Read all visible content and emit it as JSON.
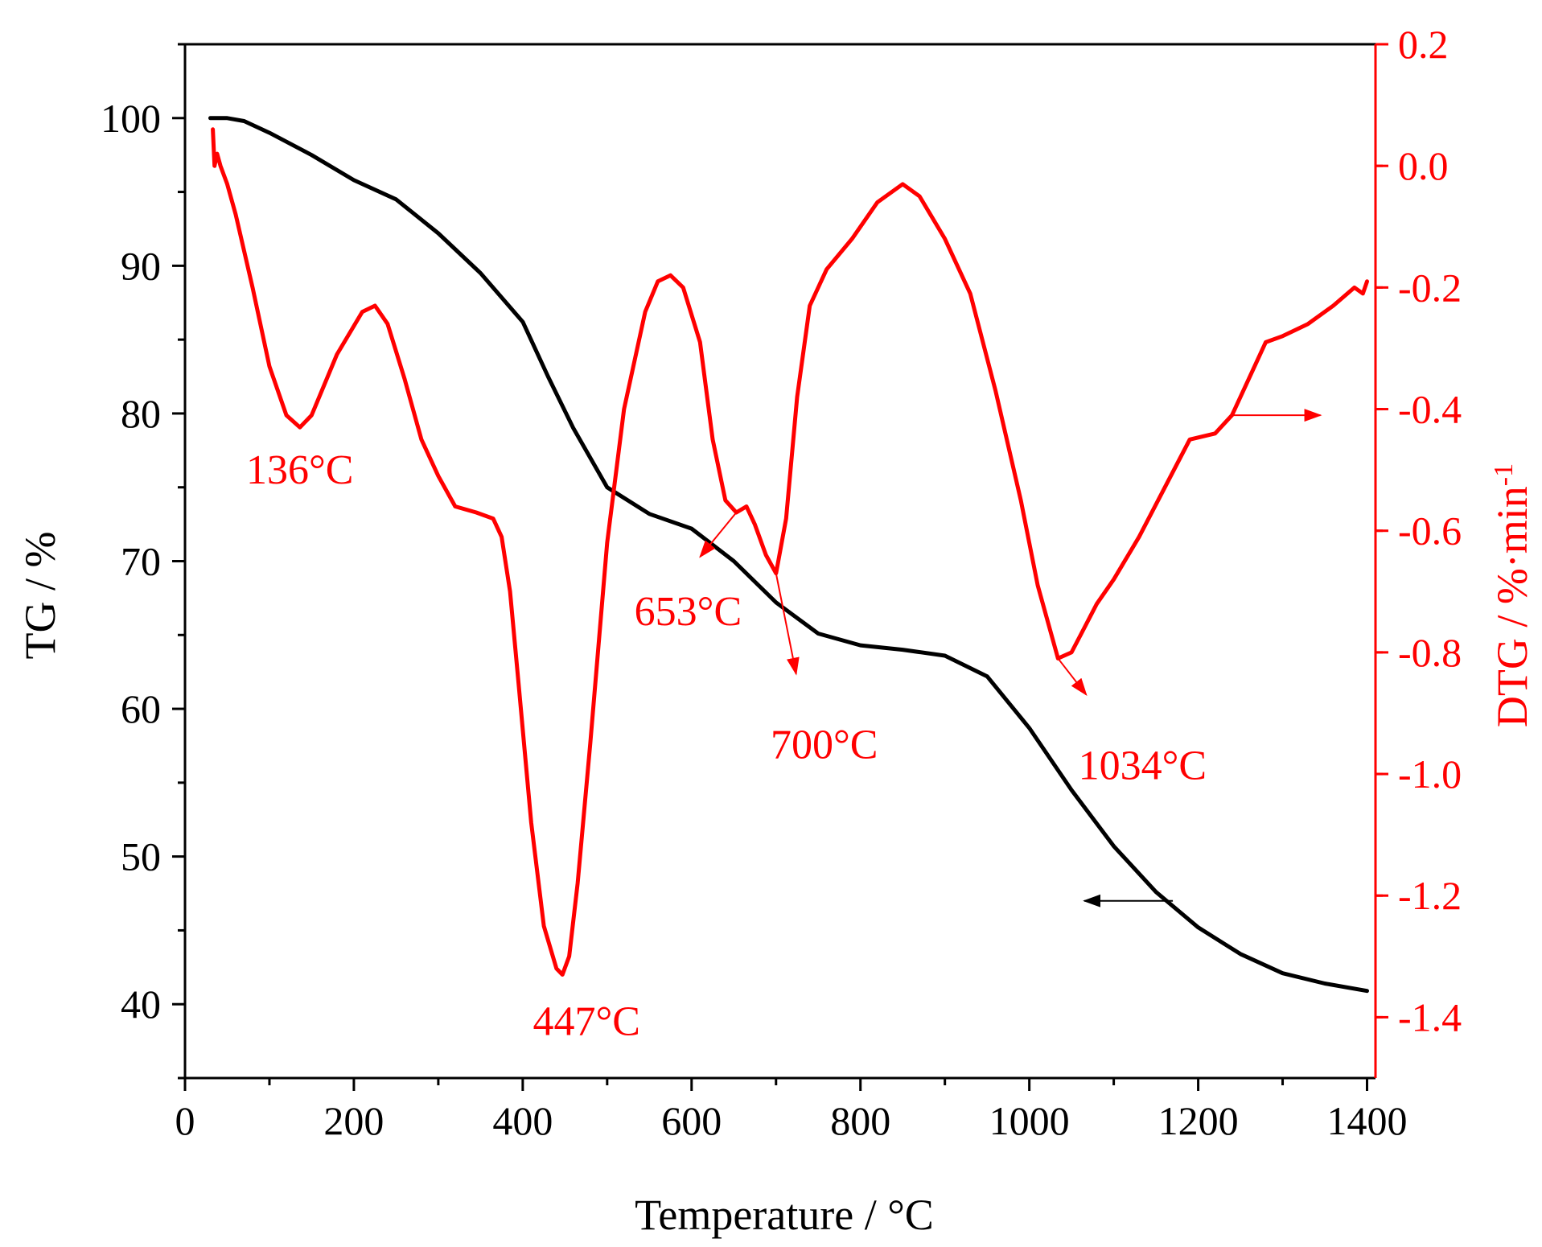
{
  "chart_data": {
    "type": "line",
    "title": "",
    "xlabel": "Temperature / °C",
    "ylabel_left": "TG / %",
    "ylabel_right": "DTG / %·min",
    "ylabel_right_superscript": "-1",
    "xlim": [
      0,
      1410
    ],
    "ylim_left": [
      35,
      105
    ],
    "ylim_right": [
      -1.5,
      0.2
    ],
    "x_ticks": [
      0,
      200,
      400,
      600,
      800,
      1000,
      1200,
      1400
    ],
    "y_ticks_left": [
      40,
      50,
      60,
      70,
      80,
      90,
      100
    ],
    "y_ticks_right": [
      0.2,
      0.0,
      -0.2,
      -0.4,
      -0.6,
      -0.8,
      -1.0,
      -1.2,
      -1.4
    ],
    "y_tick_labels_right": [
      "0.2",
      "0.0",
      "-0.2",
      "-0.4",
      "-0.6",
      "-0.8",
      "-1.0",
      "-1.2",
      "-1.4"
    ],
    "colors": {
      "tg": "#000000",
      "dtg": "#ff0000",
      "axis_left": "#000000",
      "axis_right": "#ff0000"
    },
    "series": [
      {
        "name": "TG",
        "axis": "left",
        "color": "#000000",
        "x": [
          30,
          50,
          70,
          100,
          150,
          200,
          250,
          300,
          350,
          400,
          430,
          460,
          500,
          550,
          600,
          650,
          700,
          750,
          800,
          850,
          900,
          950,
          1000,
          1050,
          1100,
          1150,
          1200,
          1250,
          1300,
          1350,
          1400
        ],
        "y": [
          100,
          100,
          99.8,
          99,
          97.5,
          95.8,
          94.5,
          92.2,
          89.5,
          86.2,
          82.5,
          79,
          75,
          73.2,
          72.2,
          70,
          67.2,
          65.1,
          64.3,
          64,
          63.6,
          62.2,
          58.7,
          54.5,
          50.7,
          47.6,
          45.2,
          43.4,
          42.1,
          41.4,
          40.9
        ]
      },
      {
        "name": "DTG",
        "axis": "right",
        "color": "#ff0000",
        "x": [
          33,
          35,
          38,
          42,
          50,
          60,
          80,
          100,
          120,
          136,
          150,
          180,
          210,
          225,
          240,
          260,
          280,
          300,
          320,
          345,
          365,
          375,
          385,
          395,
          410,
          425,
          440,
          447,
          455,
          465,
          480,
          500,
          520,
          545,
          560,
          575,
          590,
          610,
          625,
          640,
          653,
          665,
          675,
          688,
          700,
          712,
          725,
          740,
          760,
          790,
          820,
          850,
          870,
          900,
          930,
          960,
          990,
          1010,
          1034,
          1050,
          1065,
          1080,
          1100,
          1130,
          1160,
          1190,
          1220,
          1240,
          1260,
          1280,
          1300,
          1330,
          1360,
          1385,
          1395,
          1400
        ],
        "y": [
          0.06,
          0.0,
          0.02,
          0.0,
          -0.03,
          -0.08,
          -0.2,
          -0.33,
          -0.41,
          -0.43,
          -0.41,
          -0.31,
          -0.24,
          -0.23,
          -0.26,
          -0.35,
          -0.45,
          -0.51,
          -0.56,
          -0.57,
          -0.58,
          -0.61,
          -0.7,
          -0.85,
          -1.08,
          -1.25,
          -1.32,
          -1.33,
          -1.3,
          -1.18,
          -0.95,
          -0.62,
          -0.4,
          -0.24,
          -0.19,
          -0.18,
          -0.2,
          -0.29,
          -0.45,
          -0.55,
          -0.57,
          -0.56,
          -0.59,
          -0.64,
          -0.67,
          -0.58,
          -0.38,
          -0.23,
          -0.17,
          -0.12,
          -0.06,
          -0.03,
          -0.05,
          -0.12,
          -0.21,
          -0.37,
          -0.55,
          -0.69,
          -0.81,
          -0.8,
          -0.76,
          -0.72,
          -0.68,
          -0.61,
          -0.53,
          -0.45,
          -0.44,
          -0.41,
          -0.35,
          -0.29,
          -0.28,
          -0.26,
          -0.23,
          -0.2,
          -0.21,
          -0.19
        ]
      }
    ],
    "annotations": [
      {
        "id": "p136",
        "text": "136°C",
        "x": 136,
        "y": -0.43,
        "axis": "right"
      },
      {
        "id": "p447",
        "text": "447°C",
        "x": 447,
        "y": -1.33,
        "axis": "right"
      },
      {
        "id": "p653",
        "text": "653°C",
        "x": 653,
        "y": -0.57,
        "axis": "right",
        "arrow": true
      },
      {
        "id": "p700",
        "text": "700°C",
        "x": 700,
        "y": -0.67,
        "axis": "right",
        "arrow": true
      },
      {
        "id": "p1034",
        "text": "1034°C",
        "x": 1034,
        "y": -0.81,
        "axis": "right",
        "arrow": true
      }
    ],
    "axis_arrows": [
      {
        "id": "tg-arrow",
        "series": "TG",
        "direction": "left",
        "x": 1170,
        "axis": "left",
        "y": 47
      },
      {
        "id": "dtg-arrow",
        "series": "DTG",
        "direction": "right",
        "x": 1240,
        "axis": "right",
        "y": -0.41
      }
    ]
  }
}
